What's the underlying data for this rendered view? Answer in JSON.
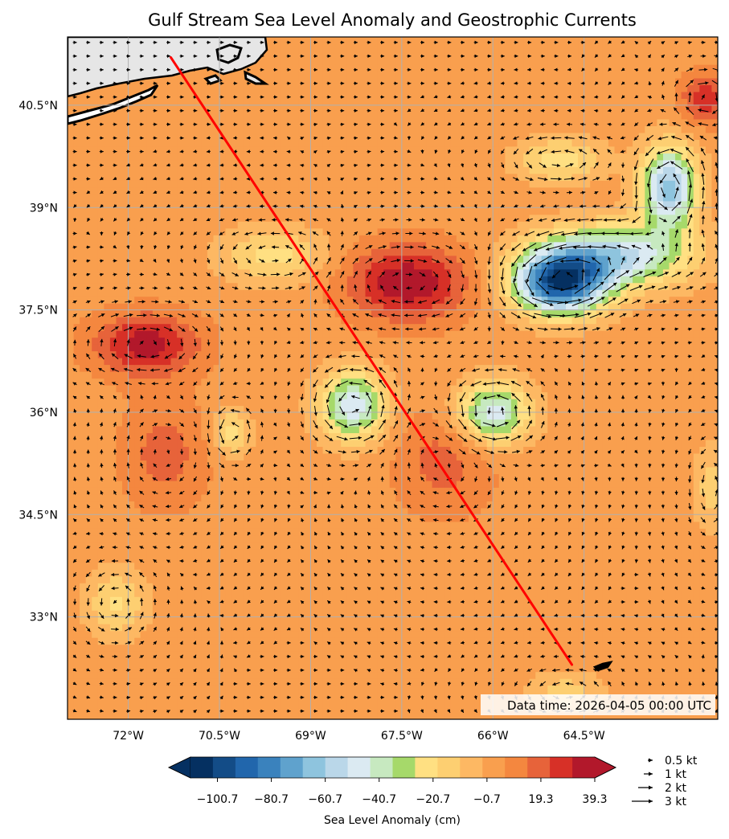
{
  "title": "Gulf Stream Sea Level Anomaly and Geostrophic Currents",
  "data_time": "Data time: 2026-04-05 00:00 UTC",
  "map": {
    "lon_range": [
      -73.0,
      -62.3
    ],
    "lat_range": [
      31.5,
      41.5
    ],
    "lon_ticks": [
      {
        "value": -72.0,
        "label": "72°W"
      },
      {
        "value": -70.5,
        "label": "70.5°W"
      },
      {
        "value": -69.0,
        "label": "69°W"
      },
      {
        "value": -67.5,
        "label": "67.5°W"
      },
      {
        "value": -66.0,
        "label": "66°W"
      },
      {
        "value": -64.5,
        "label": "64.5°W"
      }
    ],
    "lat_ticks": [
      {
        "value": 40.5,
        "label": "40.5°N"
      },
      {
        "value": 39.0,
        "label": "39°N"
      },
      {
        "value": 37.5,
        "label": "37.5°N"
      },
      {
        "value": 36.0,
        "label": "36°N"
      },
      {
        "value": 34.5,
        "label": "34.5°N"
      },
      {
        "value": 33.0,
        "label": "33°N"
      }
    ],
    "grid": true,
    "land_color": "#e6e6e6",
    "coastline_color": "#000000",
    "route": {
      "color": "#ff0000",
      "start": {
        "lon": -71.3,
        "lat": 41.2
      },
      "end": {
        "lon": -64.7,
        "lat": 32.3
      }
    },
    "sla_features": [
      {
        "lon": -67.4,
        "lat": 37.9,
        "value": 38,
        "rx": 1.0,
        "ry": 0.55
      },
      {
        "lon": -71.7,
        "lat": 37.0,
        "value": 36,
        "rx": 0.85,
        "ry": 0.45
      },
      {
        "lon": -71.4,
        "lat": 35.4,
        "value": 18,
        "rx": 0.7,
        "ry": 0.8
      },
      {
        "lon": -66.8,
        "lat": 35.3,
        "value": 18,
        "rx": 0.8,
        "ry": 0.8
      },
      {
        "lon": -62.5,
        "lat": 40.6,
        "value": 30,
        "rx": 0.4,
        "ry": 0.35
      },
      {
        "lon": -64.9,
        "lat": 37.9,
        "value": -95,
        "rx": 0.75,
        "ry": 0.45
      },
      {
        "lon": -63.1,
        "lat": 39.3,
        "value": -65,
        "rx": 0.45,
        "ry": 0.6
      },
      {
        "lon": -64.0,
        "lat": 38.3,
        "value": -55,
        "rx": 1.2,
        "ry": 0.45
      },
      {
        "lon": -68.3,
        "lat": 36.1,
        "value": -50,
        "rx": 0.55,
        "ry": 0.5
      },
      {
        "lon": -66.0,
        "lat": 36.0,
        "value": -50,
        "rx": 0.6,
        "ry": 0.45
      },
      {
        "lon": -69.6,
        "lat": 38.3,
        "value": -22,
        "rx": 0.85,
        "ry": 0.4
      },
      {
        "lon": -72.2,
        "lat": 33.2,
        "value": -20,
        "rx": 0.5,
        "ry": 0.5
      },
      {
        "lon": -70.3,
        "lat": 35.7,
        "value": -22,
        "rx": 0.3,
        "ry": 0.35
      },
      {
        "lon": -64.9,
        "lat": 39.7,
        "value": -25,
        "rx": 0.7,
        "ry": 0.3
      },
      {
        "lon": -64.8,
        "lat": 31.9,
        "value": -15,
        "rx": 0.6,
        "ry": 0.3
      },
      {
        "lon": -62.4,
        "lat": 34.9,
        "value": -15,
        "rx": 0.3,
        "ry": 0.6
      }
    ],
    "background_sla": 2
  },
  "colorbar": {
    "label": "Sea Level Anomaly (cm)",
    "min": -110.7,
    "max": 39.3,
    "step": 5,
    "extend": "both",
    "tick_values": [
      -100.7,
      -80.7,
      -60.7,
      -40.7,
      -20.7,
      -0.7,
      19.3,
      39.3
    ],
    "tick_labels": [
      "−100.7",
      "−80.7",
      "−60.7",
      "−40.7",
      "−20.7",
      "−0.7",
      "19.3",
      "39.3"
    ],
    "colors": [
      "#053061",
      "#134c87",
      "#2166ac",
      "#3a82bd",
      "#5fa2cd",
      "#8ec4de",
      "#bad7e9",
      "#dbeaf2",
      "#c7e9c0",
      "#a6d96a",
      "#ffe082",
      "#fdcf71",
      "#fdb863",
      "#f99f4e",
      "#f4873f",
      "#e7633a",
      "#d73027",
      "#b2182b"
    ]
  },
  "legend": {
    "items": [
      {
        "label": "0.5 kt",
        "speed_kt": 0.5
      },
      {
        "label": "1 kt",
        "speed_kt": 1
      },
      {
        "label": "2 kt",
        "speed_kt": 2
      },
      {
        "label": "3 kt",
        "speed_kt": 3
      }
    ]
  }
}
